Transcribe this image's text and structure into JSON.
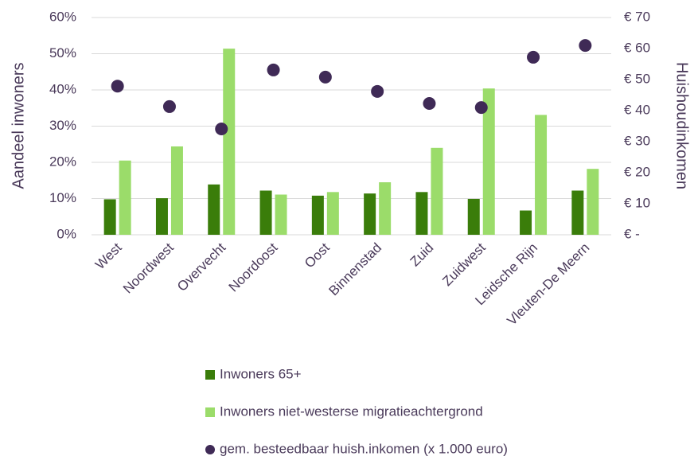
{
  "chart_data": {
    "type": "bar",
    "y_label": "Aandeel inwoners",
    "y2_label": "Huishoudinkomen",
    "categories": [
      "West",
      "Noordwest",
      "Overvecht",
      "Noordoost",
      "Oost",
      "Binnenstad",
      "Zuid",
      "Zuidwest",
      "Leidsche Rijn",
      "Vleuten-De Meern"
    ],
    "series": [
      {
        "name": "Inwoners 65+",
        "type": "bar",
        "color": "#3a7d0a",
        "values": [
          9.8,
          10.1,
          13.9,
          12.2,
          10.8,
          11.4,
          11.8,
          9.9,
          6.7,
          12.2
        ]
      },
      {
        "name": "Inwoners niet-westerse migratieachtergrond",
        "type": "bar",
        "color": "#9bdc6a",
        "values": [
          20.5,
          24.4,
          51.4,
          11.1,
          11.8,
          14.5,
          24.0,
          40.4,
          33.1,
          18.2
        ]
      },
      {
        "name": "gem. besteedbaar huish.inkomen (x 1.000 euro)",
        "type": "scatter",
        "axis": "y2",
        "color": "#3f2a56",
        "values": [
          47.9,
          41.3,
          34.1,
          53.1,
          50.8,
          46.2,
          42.3,
          41.0,
          57.2,
          61.0
        ]
      }
    ],
    "ylim": [
      0,
      60
    ],
    "yticks": [
      {
        "value": 0,
        "label": "0%"
      },
      {
        "value": 10,
        "label": "10%"
      },
      {
        "value": 20,
        "label": "20%"
      },
      {
        "value": 30,
        "label": "30%"
      },
      {
        "value": 40,
        "label": "40%"
      },
      {
        "value": 50,
        "label": "50%"
      },
      {
        "value": 60,
        "label": "60%"
      }
    ],
    "y2lim": [
      0,
      70
    ],
    "y2ticks": [
      {
        "value": 0,
        "label": "€ -"
      },
      {
        "value": 10,
        "label": "€ 10"
      },
      {
        "value": 20,
        "label": "€ 20"
      },
      {
        "value": 30,
        "label": "€ 30"
      },
      {
        "value": 40,
        "label": "€ 40"
      },
      {
        "value": 50,
        "label": "€ 50"
      },
      {
        "value": 60,
        "label": "€ 60"
      },
      {
        "value": 70,
        "label": "€ 70"
      }
    ],
    "grid": true,
    "legend": "bottom"
  }
}
